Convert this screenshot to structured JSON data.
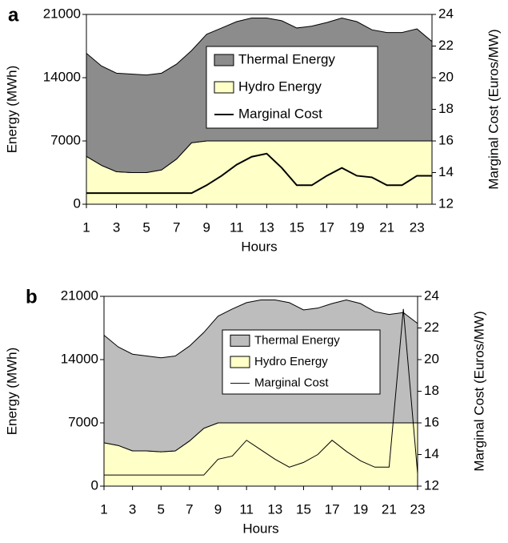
{
  "chart_data": [
    {
      "type": "stacked_area_line",
      "panel": "a",
      "x": [
        1,
        2,
        3,
        4,
        5,
        6,
        7,
        8,
        9,
        10,
        11,
        12,
        13,
        14,
        15,
        16,
        17,
        18,
        19,
        20,
        21,
        22,
        23,
        24
      ],
      "xlabel": "Hours",
      "ylabel": "Energy (MWh)",
      "y2label": "Marginal Cost (Euros/MW)",
      "xlim": [
        1,
        24
      ],
      "xticks": [
        1,
        3,
        5,
        7,
        9,
        11,
        13,
        15,
        17,
        19,
        21,
        23
      ],
      "ylim": [
        0,
        21000
      ],
      "yticks": [
        0,
        7000,
        14000,
        21000
      ],
      "y2lim": [
        12,
        24
      ],
      "y2ticks": [
        12,
        14,
        16,
        18,
        20,
        22,
        24
      ],
      "series": [
        {
          "name": "Hydro Energy",
          "color": "#ffffc8",
          "values": [
            5300,
            4300,
            3600,
            3500,
            3500,
            3800,
            5000,
            6800,
            7000,
            7000,
            7000,
            7000,
            7000,
            7000,
            7000,
            7000,
            7000,
            7000,
            7000,
            7000,
            7000,
            7000,
            7000,
            7000
          ]
        },
        {
          "name": "Thermal Energy",
          "color": "#8c8c8c",
          "values": [
            11400,
            11000,
            10900,
            10900,
            10800,
            10700,
            10500,
            10200,
            11800,
            12500,
            13200,
            13600,
            13600,
            13300,
            12500,
            12700,
            13100,
            13600,
            13200,
            12300,
            12000,
            12000,
            12400,
            11000
          ]
        },
        {
          "name": "Marginal Cost",
          "color": "#000000",
          "axis": "y2",
          "values": [
            12.7,
            12.7,
            12.7,
            12.7,
            12.7,
            12.7,
            12.7,
            12.7,
            13.2,
            13.8,
            14.5,
            15.0,
            15.2,
            14.3,
            13.2,
            13.2,
            13.8,
            14.3,
            13.8,
            13.7,
            13.2,
            13.2,
            13.8,
            13.8
          ]
        }
      ]
    },
    {
      "type": "stacked_area_line",
      "panel": "b",
      "x": [
        1,
        2,
        3,
        4,
        5,
        6,
        7,
        8,
        9,
        10,
        11,
        12,
        13,
        14,
        15,
        16,
        17,
        18,
        19,
        20,
        21,
        22,
        23
      ],
      "xlabel": "Hours",
      "ylabel": "Energy (MWh)",
      "y2label": "Marginal Cost (Euros/MW)",
      "xlim": [
        1,
        23
      ],
      "xticks": [
        1,
        3,
        5,
        7,
        9,
        11,
        13,
        15,
        17,
        19,
        21,
        23
      ],
      "ylim": [
        0,
        21000
      ],
      "yticks": [
        0,
        7000,
        14000,
        21000
      ],
      "y2lim": [
        12,
        24
      ],
      "y2ticks": [
        12,
        14,
        16,
        18,
        20,
        22,
        24
      ],
      "series": [
        {
          "name": "Hydro Energy",
          "color": "#ffffc8",
          "values": [
            4800,
            4500,
            3900,
            3900,
            3800,
            3900,
            5000,
            6400,
            7000,
            7000,
            7000,
            7000,
            7000,
            7000,
            7000,
            7000,
            7000,
            7000,
            7000,
            7000,
            7000,
            7000,
            7000
          ]
        },
        {
          "name": "Thermal Energy",
          "color": "#bdbdbd",
          "values": [
            11900,
            10900,
            10700,
            10500,
            10400,
            10500,
            10500,
            10600,
            11800,
            12600,
            13300,
            13600,
            13600,
            13300,
            12500,
            12700,
            13200,
            13600,
            13200,
            12300,
            12000,
            12200,
            11000
          ]
        },
        {
          "name": "Marginal Cost",
          "color": "#000000",
          "axis": "y2",
          "values": [
            12.7,
            12.7,
            12.7,
            12.7,
            12.7,
            12.7,
            12.7,
            12.7,
            13.7,
            13.9,
            14.9,
            14.3,
            13.7,
            13.2,
            13.5,
            14.0,
            14.9,
            14.2,
            13.6,
            13.2,
            13.2,
            23.2,
            12.8
          ]
        }
      ]
    }
  ]
}
